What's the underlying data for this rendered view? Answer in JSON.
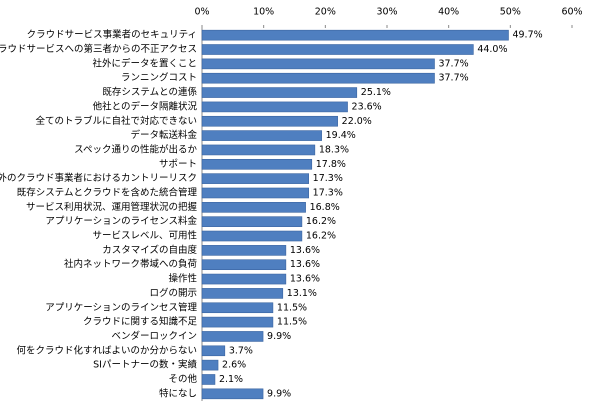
{
  "chart_data": {
    "type": "hbar",
    "categories": [
      "クラウドサービス事業者のセキュリティ",
      "クラウドサービスへの第三者からの不正アクセス",
      "社外にデータを置くこと",
      "ランニングコスト",
      "既存システムとの連係",
      "他社とのデータ隔離状況",
      "全てのトラブルに自社で対応できない",
      "データ転送料金",
      "スペック通りの性能が出るか",
      "サポート",
      "海外のクラウド事業者におけるカントリーリスク",
      "既存システムとクラウドを含めた統合管理",
      "サービス利用状況、運用管理状況の把握",
      "アプリケーションのライセンス料金",
      "サービスレベル、可用性",
      "カスタマイズの自由度",
      "社内ネットワーク帯域への負荷",
      "操作性",
      "ログの開示",
      "アプリケーションのラインセス管理",
      "クラウドに関する知識不足",
      "ベンダーロックイン",
      "何をクラウド化すればよいのか分からない",
      "SIパートナーの数・実績",
      "その他",
      "特になし"
    ],
    "values": [
      49.7,
      44.0,
      37.7,
      37.7,
      25.1,
      23.6,
      22.0,
      19.4,
      18.3,
      17.8,
      17.3,
      17.3,
      16.8,
      16.2,
      16.2,
      13.6,
      13.6,
      13.6,
      13.1,
      11.5,
      11.5,
      9.9,
      3.7,
      2.6,
      2.1,
      9.9
    ],
    "value_labels": [
      "49.7%",
      "44.0%",
      "37.7%",
      "37.7%",
      "25.1%",
      "23.6%",
      "22.0%",
      "19.4%",
      "18.3%",
      "17.8%",
      "17.3%",
      "17.3%",
      "16.8%",
      "16.2%",
      "16.2%",
      "13.6%",
      "13.6%",
      "13.6%",
      "13.1%",
      "11.5%",
      "11.5%",
      "9.9%",
      "3.7%",
      "2.6%",
      "2.1%",
      "9.9%"
    ],
    "color": "#4f7fc0",
    "xlim": [
      0,
      60
    ],
    "xticks": [
      {
        "value": 0,
        "label": "0%"
      },
      {
        "value": 10,
        "label": "10%"
      },
      {
        "value": 20,
        "label": "20%"
      },
      {
        "value": 30,
        "label": "30%"
      },
      {
        "value": 40,
        "label": "40%"
      },
      {
        "value": 50,
        "label": "50%"
      },
      {
        "value": 60,
        "label": "60%"
      }
    ]
  }
}
